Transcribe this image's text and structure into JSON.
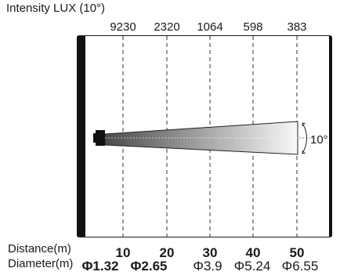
{
  "title": "Intensity LUX (10°)",
  "beam_angle": "10°",
  "rows": {
    "distance_label": "Distance(m)",
    "diameter_label": "Diameter(m)"
  },
  "points": [
    {
      "lux": "9230",
      "distance": "10",
      "diameter": "Φ1.32"
    },
    {
      "lux": "2320",
      "distance": "20",
      "diameter": "Φ2.65"
    },
    {
      "lux": "1064",
      "distance": "30",
      "diameter": "Φ3.9"
    },
    {
      "lux": "598",
      "distance": "40",
      "diameter": "Φ5.24"
    },
    {
      "lux": "383",
      "distance": "50",
      "diameter": "Φ6.55"
    }
  ],
  "colors": {
    "frame": "#111111",
    "beam_start": "#4a4a4a",
    "beam_end": "#f8f8f8",
    "guide_lines": "#333333"
  }
}
